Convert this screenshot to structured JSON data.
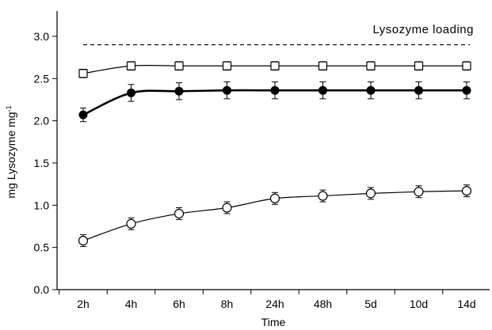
{
  "chart_data": {
    "type": "line",
    "xlabel": "Time",
    "ylabel": "mg Lysozyme mg",
    "ylabel_superscript": "-1",
    "categories": [
      "2h",
      "4h",
      "6h",
      "8h",
      "24h",
      "48h",
      "5d",
      "10d",
      "14d"
    ],
    "ylim": [
      0.0,
      3.0
    ],
    "yticks": [
      0.0,
      0.5,
      1.0,
      1.5,
      2.0,
      2.5,
      3.0
    ],
    "ytick_labels": [
      "0.0",
      "0.5",
      "1.0",
      "1.5",
      "2.0",
      "2.5",
      "3.0"
    ],
    "grid": false,
    "reference_line": {
      "label": "Lysozyme loading",
      "value": 2.9,
      "style": "dashed"
    },
    "series": [
      {
        "marker": "open-square",
        "color": "#000000",
        "values": [
          2.56,
          2.65,
          2.65,
          2.65,
          2.65,
          2.65,
          2.65,
          2.65,
          2.65
        ],
        "errors": [
          0.05,
          0.05,
          0.05,
          0.05,
          0.05,
          0.05,
          0.05,
          0.05,
          0.05
        ]
      },
      {
        "marker": "filled-circle",
        "color": "#000000",
        "line_weight": "bold",
        "values": [
          2.07,
          2.33,
          2.35,
          2.36,
          2.36,
          2.36,
          2.36,
          2.36,
          2.36
        ],
        "errors": [
          0.08,
          0.1,
          0.1,
          0.1,
          0.1,
          0.1,
          0.1,
          0.1,
          0.1
        ]
      },
      {
        "marker": "open-circle",
        "color": "#000000",
        "values": [
          0.58,
          0.78,
          0.9,
          0.97,
          1.08,
          1.11,
          1.14,
          1.16,
          1.17
        ],
        "errors": [
          0.07,
          0.07,
          0.07,
          0.07,
          0.07,
          0.07,
          0.07,
          0.07,
          0.07
        ]
      }
    ]
  }
}
